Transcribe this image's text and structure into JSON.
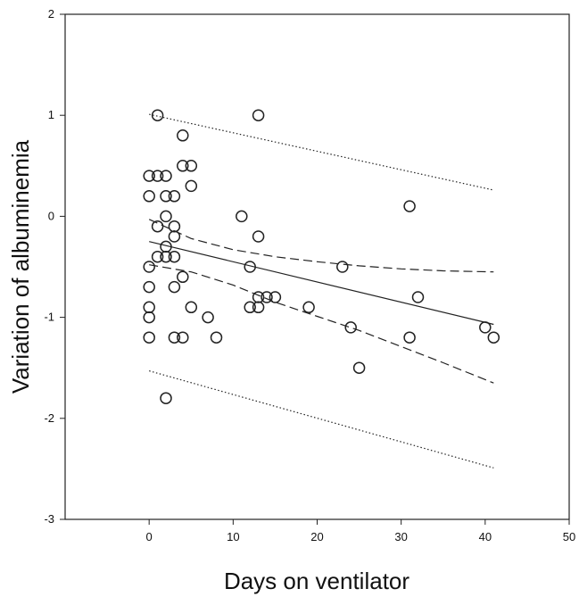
{
  "chart_data": {
    "type": "scatter",
    "xlabel": "Days on ventilator",
    "ylabel": "Variation of albuminemia",
    "xlim": [
      -10,
      50
    ],
    "ylim": [
      -3,
      2
    ],
    "xticks": [
      0,
      10,
      20,
      30,
      40,
      50
    ],
    "yticks": [
      -3,
      -2,
      -1,
      0,
      1,
      2
    ],
    "grid": false,
    "legend": "none",
    "colors": {
      "points": "#222222",
      "lines": "#222222",
      "background": "#ffffff"
    },
    "points": [
      {
        "x": 1,
        "y": 1.0
      },
      {
        "x": 13,
        "y": 1.0
      },
      {
        "x": 4,
        "y": 0.8
      },
      {
        "x": 4,
        "y": 0.5
      },
      {
        "x": 5,
        "y": 0.5
      },
      {
        "x": 0,
        "y": 0.4
      },
      {
        "x": 1,
        "y": 0.4
      },
      {
        "x": 2,
        "y": 0.4
      },
      {
        "x": 5,
        "y": 0.3
      },
      {
        "x": 0,
        "y": 0.2
      },
      {
        "x": 2,
        "y": 0.2
      },
      {
        "x": 3,
        "y": 0.2
      },
      {
        "x": 31,
        "y": 0.1
      },
      {
        "x": 2,
        "y": 0.0
      },
      {
        "x": 11,
        "y": 0.0
      },
      {
        "x": 1,
        "y": -0.1
      },
      {
        "x": 3,
        "y": -0.1
      },
      {
        "x": 3,
        "y": -0.2
      },
      {
        "x": 13,
        "y": -0.2
      },
      {
        "x": 2,
        "y": -0.3
      },
      {
        "x": 1,
        "y": -0.4
      },
      {
        "x": 2,
        "y": -0.4
      },
      {
        "x": 3,
        "y": -0.4
      },
      {
        "x": 0,
        "y": -0.5
      },
      {
        "x": 12,
        "y": -0.5
      },
      {
        "x": 23,
        "y": -0.5
      },
      {
        "x": 4,
        "y": -0.6
      },
      {
        "x": 0,
        "y": -0.7
      },
      {
        "x": 3,
        "y": -0.7
      },
      {
        "x": 13,
        "y": -0.8
      },
      {
        "x": 14,
        "y": -0.8
      },
      {
        "x": 15,
        "y": -0.8
      },
      {
        "x": 32,
        "y": -0.8
      },
      {
        "x": 0,
        "y": -0.9
      },
      {
        "x": 5,
        "y": -0.9
      },
      {
        "x": 12,
        "y": -0.9
      },
      {
        "x": 13,
        "y": -0.9
      },
      {
        "x": 19,
        "y": -0.9
      },
      {
        "x": 0,
        "y": -1.0
      },
      {
        "x": 7,
        "y": -1.0
      },
      {
        "x": 24,
        "y": -1.1
      },
      {
        "x": 40,
        "y": -1.1
      },
      {
        "x": 0,
        "y": -1.2
      },
      {
        "x": 3,
        "y": -1.2
      },
      {
        "x": 4,
        "y": -1.2
      },
      {
        "x": 8,
        "y": -1.2
      },
      {
        "x": 31,
        "y": -1.2
      },
      {
        "x": 41,
        "y": -1.2
      },
      {
        "x": 25,
        "y": -1.5
      },
      {
        "x": 2,
        "y": -1.8
      }
    ],
    "lines": [
      {
        "style": "solid",
        "x": [
          0,
          41
        ],
        "y": [
          -0.25,
          -1.07
        ]
      },
      {
        "style": "dashed",
        "x": [
          0,
          5,
          10,
          15,
          20,
          25,
          30,
          35,
          41
        ],
        "y": [
          -0.03,
          -0.22,
          -0.33,
          -0.4,
          -0.45,
          -0.49,
          -0.52,
          -0.54,
          -0.55
        ]
      },
      {
        "style": "dashed",
        "x": [
          0,
          5,
          10,
          15,
          20,
          25,
          30,
          35,
          41
        ],
        "y": [
          -0.48,
          -0.55,
          -0.68,
          -0.85,
          -0.99,
          -1.13,
          -1.29,
          -1.45,
          -1.65
        ]
      },
      {
        "style": "dotted",
        "x": [
          0,
          41
        ],
        "y": [
          1.01,
          0.26
        ]
      },
      {
        "style": "dotted",
        "x": [
          0,
          41
        ],
        "y": [
          -1.53,
          -2.49
        ]
      }
    ]
  }
}
